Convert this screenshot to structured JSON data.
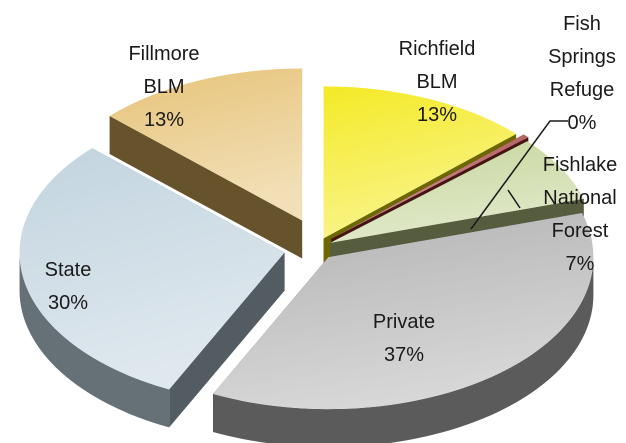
{
  "chart_data": {
    "type": "pie",
    "title": "",
    "style": "3d-exploded",
    "slices": [
      {
        "label_lines": [
          "Richfield",
          "BLM"
        ],
        "percent_label": "13%",
        "value": 13,
        "color": "#f2e600"
      },
      {
        "label_lines": [
          "Fish",
          "Springs",
          "Refuge"
        ],
        "percent_label": "0%",
        "value": 0.4,
        "color": "#9b2d2d"
      },
      {
        "label_lines": [
          "Fishlake",
          "National",
          "Forest"
        ],
        "percent_label": "7%",
        "value": 7,
        "color": "#bccf8a"
      },
      {
        "label_lines": [
          "Private"
        ],
        "percent_label": "37%",
        "value": 37,
        "color": "#a6a6a6"
      },
      {
        "label_lines": [
          "State"
        ],
        "percent_label": "30%",
        "value": 30,
        "color": "#b7ccd9"
      },
      {
        "label_lines": [
          "Fillmore",
          "BLM"
        ],
        "percent_label": "13%",
        "value": 13,
        "color": "#e2b860"
      }
    ]
  }
}
